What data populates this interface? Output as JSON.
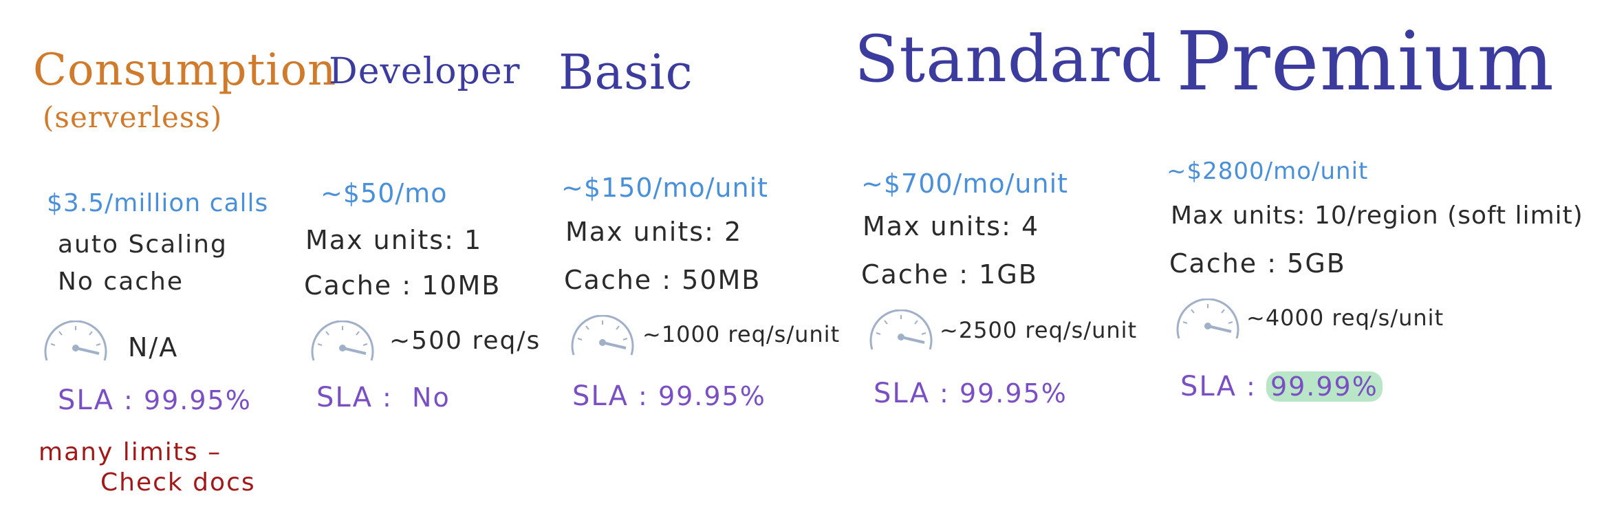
{
  "colors": {
    "consumption_title": "#d07a2c",
    "tier_title": "#3b3c9e",
    "price": "#4a90d9",
    "text": "#2a2a2a",
    "sla": "#7a4fc4",
    "limits_note": "#a01818",
    "gauge": "#9fb0c8",
    "highlight": "#b9e6c6"
  },
  "tiers": [
    {
      "name": "Consumption",
      "subtitle": "(serverless)",
      "price": "$3.5/million calls",
      "line1": "auto Scaling",
      "line2": "No cache",
      "throughput": "N/A",
      "sla_label": "SLA",
      "sla_value": "99.95%",
      "extra_note_1": "many limits –",
      "extra_note_2": "Check docs",
      "gauge_icon": "speedometer-icon"
    },
    {
      "name": "Developer",
      "price": "~$50/mo",
      "line1": "Max units: 1",
      "line2": "Cache : 10MB",
      "throughput": "~500 req/s",
      "sla_label": "SLA",
      "sla_value": "No",
      "gauge_icon": "speedometer-icon"
    },
    {
      "name": "Basic",
      "price": "~$150/mo/unit",
      "line1": "Max units: 2",
      "line2": "Cache : 50MB",
      "throughput": "~1000 req/s/unit",
      "sla_label": "SLA",
      "sla_value": "99.95%",
      "gauge_icon": "speedometer-icon"
    },
    {
      "name": "Standard",
      "price": "~$700/mo/unit",
      "line1": "Max units: 4",
      "line2": "Cache : 1GB",
      "throughput": "~2500 req/s/unit",
      "sla_label": "SLA",
      "sla_value": "99.95%",
      "gauge_icon": "speedometer-icon"
    },
    {
      "name": "Premium",
      "price": "~$2800/mo/unit",
      "line1": "Max units: 10/region (soft limit)",
      "line2": "Cache : 5GB",
      "throughput": "~4000 req/s/unit",
      "sla_label": "SLA",
      "sla_value": "99.99%",
      "gauge_icon": "speedometer-icon"
    }
  ]
}
